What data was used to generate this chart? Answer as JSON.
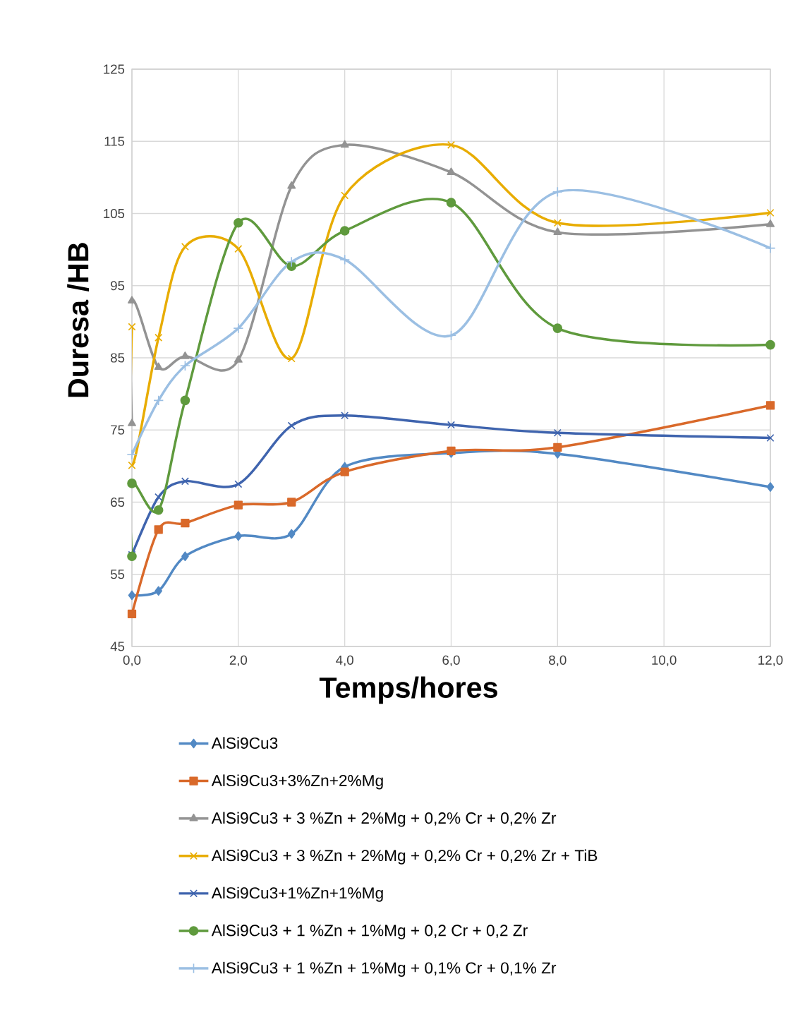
{
  "chart_data": {
    "type": "line",
    "xlabel": "Temps/hores",
    "ylabel": "Duresa /HB",
    "xlim": [
      0,
      12
    ],
    "ylim": [
      45,
      125
    ],
    "xticks": [
      {
        "value": 0,
        "label": "0,0"
      },
      {
        "value": 2,
        "label": "2,0"
      },
      {
        "value": 4,
        "label": "4,0"
      },
      {
        "value": 6,
        "label": "6,0"
      },
      {
        "value": 8,
        "label": "8,0"
      },
      {
        "value": 10,
        "label": "10,0"
      },
      {
        "value": 12,
        "label": "12,0"
      }
    ],
    "yticks": [
      45,
      55,
      65,
      75,
      85,
      95,
      105,
      115,
      125
    ],
    "grid": true,
    "legend": "bottom",
    "line_style": "solid",
    "series": [
      {
        "name": "AlSi9Cu3",
        "color": "#5289c4",
        "marker": "diamond",
        "x": [
          0,
          0.5,
          1,
          2,
          3,
          4,
          6,
          8,
          12
        ],
        "values": [
          52.1,
          52.7,
          57.5,
          60.3,
          60.6,
          69.9,
          71.8,
          71.7,
          67.1
        ]
      },
      {
        "name": "AlSi9Cu3+3%Zn+2%Mg",
        "color": "#d9692a",
        "marker": "square",
        "x": [
          0,
          0.5,
          1,
          2,
          3,
          4,
          6,
          8,
          12
        ],
        "values": [
          49.5,
          61.2,
          62.1,
          64.6,
          65.0,
          69.2,
          72.1,
          72.6,
          78.4
        ]
      },
      {
        "name": "AlSi9Cu3 + 3 %Zn + 2%Mg + 0,2% Cr + 0,2% Zr",
        "color": "#939393",
        "marker": "triangle",
        "x": [
          0,
          0,
          0.5,
          1,
          2,
          3,
          4,
          6,
          8,
          12
        ],
        "values": [
          75.9,
          92.9,
          83.7,
          85.2,
          84.7,
          108.8,
          114.5,
          110.7,
          102.4,
          103.5
        ]
      },
      {
        "name": "AlSi9Cu3 + 3 %Zn + 2%Mg + 0,2% Cr + 0,2% Zr + TiB",
        "color": "#e8ac00",
        "marker": "cross",
        "x": [
          0,
          0,
          0.5,
          1,
          2,
          3,
          4,
          6,
          8,
          12
        ],
        "values": [
          89.3,
          70.1,
          87.8,
          100.4,
          100.1,
          84.9,
          107.5,
          114.5,
          103.7,
          105.1
        ]
      },
      {
        "name": "AlSi9Cu3+1%Zn+1%Mg",
        "color": "#3f64ae",
        "marker": "cross",
        "x": [
          0,
          0.5,
          1,
          2,
          3,
          4,
          6,
          8,
          12
        ],
        "values": [
          57.7,
          65.7,
          67.9,
          67.5,
          75.6,
          77.0,
          75.7,
          74.6,
          73.9
        ]
      },
      {
        "name": "AlSi9Cu3 + 1 %Zn + 1%Mg + 0,2 Cr + 0,2 Zr",
        "color": "#5f9a3d",
        "marker": "circle",
        "x": [
          0,
          0,
          0.5,
          1,
          2,
          3,
          4,
          6,
          8,
          12
        ],
        "values": [
          57.5,
          67.6,
          63.9,
          79.1,
          103.7,
          97.7,
          102.6,
          106.5,
          89.1,
          86.8
        ]
      },
      {
        "name": "AlSi9Cu3 + 1 %Zn + 1%Mg + 0,1% Cr + 0,1% Zr",
        "color": "#9bbfe3",
        "marker": "plus",
        "x": [
          0,
          0.5,
          1,
          2,
          3,
          4,
          6,
          8,
          12
        ],
        "values": [
          71.6,
          79.1,
          83.9,
          89.1,
          98.3,
          98.6,
          88.1,
          108.0,
          100.2
        ]
      }
    ]
  }
}
